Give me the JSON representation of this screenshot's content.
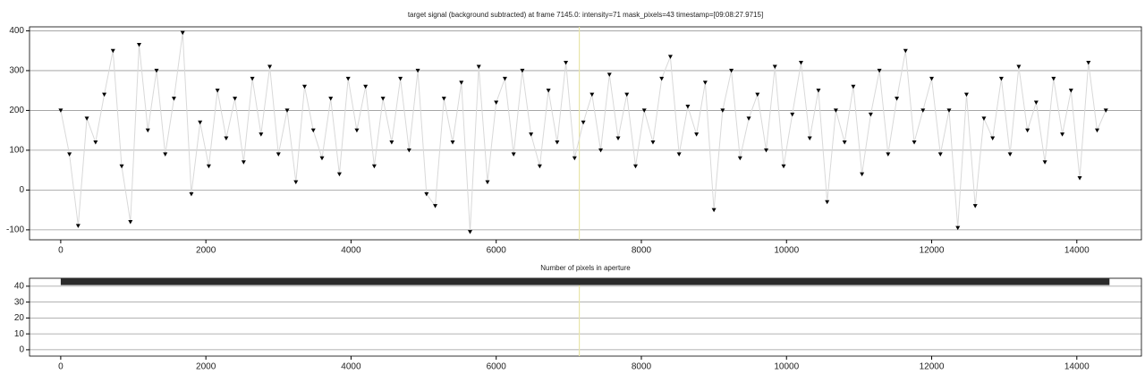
{
  "chart_data": [
    {
      "type": "scatter-line",
      "title": "target signal (background subtracted) at frame 7145.0: intensity=71 mask_pixels=43 timestamp=[09:08:27.9715]",
      "x": [
        0,
        120,
        240,
        360,
        480,
        600,
        720,
        840,
        960,
        1080,
        1200,
        1320,
        1440,
        1560,
        1680,
        1800,
        1920,
        2040,
        2160,
        2280,
        2400,
        2520,
        2640,
        2760,
        2880,
        3000,
        3120,
        3240,
        3360,
        3480,
        3600,
        3720,
        3840,
        3960,
        4080,
        4200,
        4320,
        4440,
        4560,
        4680,
        4800,
        4920,
        5040,
        5160,
        5280,
        5400,
        5520,
        5640,
        5760,
        5880,
        6000,
        6120,
        6240,
        6360,
        6480,
        6600,
        6720,
        6840,
        6960,
        7080,
        7200,
        7320,
        7440,
        7560,
        7680,
        7800,
        7920,
        8040,
        8160,
        8280,
        8400,
        8520,
        8640,
        8760,
        8880,
        9000,
        9120,
        9240,
        9360,
        9480,
        9600,
        9720,
        9840,
        9960,
        10080,
        10200,
        10320,
        10440,
        10560,
        10680,
        10800,
        10920,
        11040,
        11160,
        11280,
        11400,
        11520,
        11640,
        11760,
        11880,
        12000,
        12120,
        12240,
        12360,
        12480,
        12600,
        12720,
        12840,
        12960,
        13080,
        13200,
        13320,
        13440,
        13560,
        13680,
        13800,
        13920,
        14040,
        14160,
        14280,
        14400
      ],
      "values": [
        200,
        90,
        -90,
        180,
        120,
        240,
        350,
        60,
        -80,
        365,
        150,
        300,
        90,
        230,
        395,
        -10,
        170,
        60,
        250,
        130,
        230,
        70,
        280,
        140,
        310,
        90,
        200,
        20,
        260,
        150,
        80,
        230,
        40,
        280,
        150,
        260,
        60,
        230,
        120,
        280,
        100,
        300,
        -10,
        -40,
        230,
        120,
        270,
        -105,
        310,
        20,
        220,
        280,
        90,
        300,
        140,
        60,
        250,
        120,
        320,
        80,
        170,
        240,
        100,
        290,
        130,
        240,
        60,
        200,
        120,
        280,
        335,
        90,
        210,
        140,
        270,
        -50,
        200,
        300,
        80,
        180,
        240,
        100,
        310,
        60,
        190,
        320,
        130,
        250,
        -30,
        200,
        120,
        260,
        40,
        190,
        300,
        90,
        230,
        350,
        120,
        200,
        280,
        90,
        200,
        -95,
        240,
        -40,
        180,
        130,
        280,
        90,
        310,
        150,
        220,
        70,
        280,
        140,
        250,
        30,
        320,
        150,
        200
      ],
      "color": "#000000",
      "line_color": "#d9d9d9",
      "cursor_x": 7145,
      "cursor_color": "#e8e4a8",
      "xlim": [
        -430,
        14890
      ],
      "ylim": [
        -125,
        410
      ],
      "xticks": [
        0,
        2000,
        4000,
        6000,
        8000,
        10000,
        12000,
        14000
      ],
      "yticks": [
        -100,
        0,
        100,
        200,
        300,
        400
      ],
      "grid": true
    },
    {
      "type": "line",
      "title": "Number of pixels in aperture",
      "x": [
        0,
        14450
      ],
      "values": [
        43,
        43
      ],
      "color": "#2b2b2b",
      "cursor_x": 7145,
      "cursor_color": "#e8e4a8",
      "xlim": [
        -430,
        14890
      ],
      "ylim": [
        -4,
        45
      ],
      "xticks": [
        0,
        2000,
        4000,
        6000,
        8000,
        10000,
        12000,
        14000
      ],
      "yticks": [
        0,
        10,
        20,
        30,
        40
      ],
      "grid": true
    }
  ]
}
